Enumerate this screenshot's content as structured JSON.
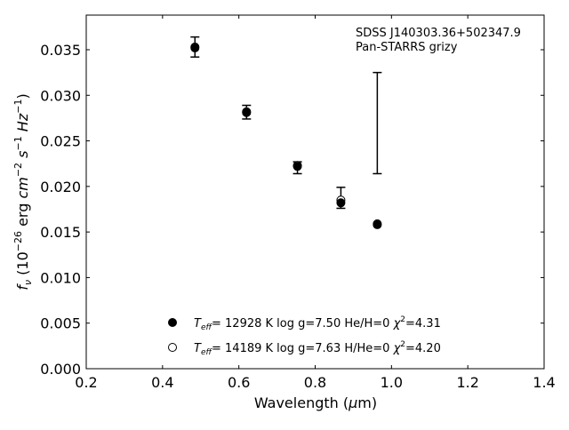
{
  "chart_data": {
    "type": "scatter",
    "xlabel": "Wavelength (μm)",
    "ylabel": "fν (10⁻²⁶ erg cm⁻² s⁻¹ Hz⁻¹)",
    "xlim": [
      0.2,
      1.4
    ],
    "ylim": [
      0.0,
      0.0388
    ],
    "xticks": [
      0.2,
      0.4,
      0.6,
      0.8,
      1.0,
      1.2,
      1.4
    ],
    "xtick_labels": [
      "0.2",
      "0.4",
      "0.6",
      "0.8",
      "1.0",
      "1.2",
      "1.4"
    ],
    "yticks": [
      0.0,
      0.005,
      0.01,
      0.015,
      0.02,
      0.025,
      0.03,
      0.035
    ],
    "ytick_labels": [
      "0.000",
      "0.005",
      "0.010",
      "0.015",
      "0.020",
      "0.025",
      "0.030",
      "0.035"
    ],
    "grid": false,
    "annotation": [
      "SDSS J140303.36+502347.9",
      "Pan-STARRS grizy"
    ],
    "observed": {
      "x": [
        0.4849,
        0.6201,
        0.7535,
        0.8674,
        0.9628
      ],
      "y": [
        0.0353,
        0.0281,
        0.0222,
        0.0187,
        0.0269
      ],
      "yerr_low": [
        0.0342,
        0.0274,
        0.0214,
        0.0176,
        0.0214
      ],
      "yerr_high": [
        0.0364,
        0.0289,
        0.0227,
        0.0199,
        0.0325
      ]
    },
    "series": [
      {
        "name": "Teff= 12928 K  log g=7.50  He/H=0  χ²=4.31",
        "marker": "filled",
        "x": [
          0.4849,
          0.6201,
          0.7535,
          0.8674,
          0.9628
        ],
        "y": [
          0.0352,
          0.0281,
          0.0222,
          0.0182,
          0.0158
        ]
      },
      {
        "name": "Teff= 14189 K  log g=7.63  H/He=0  χ²=4.20",
        "marker": "open",
        "x": [
          0.4849,
          0.6201,
          0.7535,
          0.8674,
          0.9628
        ],
        "y": [
          0.0353,
          0.0282,
          0.0223,
          0.0185,
          0.0159
        ]
      }
    ],
    "legend": [
      {
        "marker": "filled",
        "teff": "= 12928 K  log g=7.50  He/H=0  ",
        "chi": "=4.31"
      },
      {
        "marker": "open",
        "teff": "= 14189 K  log g=7.63  H/He=0  ",
        "chi": "=4.20"
      }
    ],
    "legend_placement": "lower-center"
  }
}
